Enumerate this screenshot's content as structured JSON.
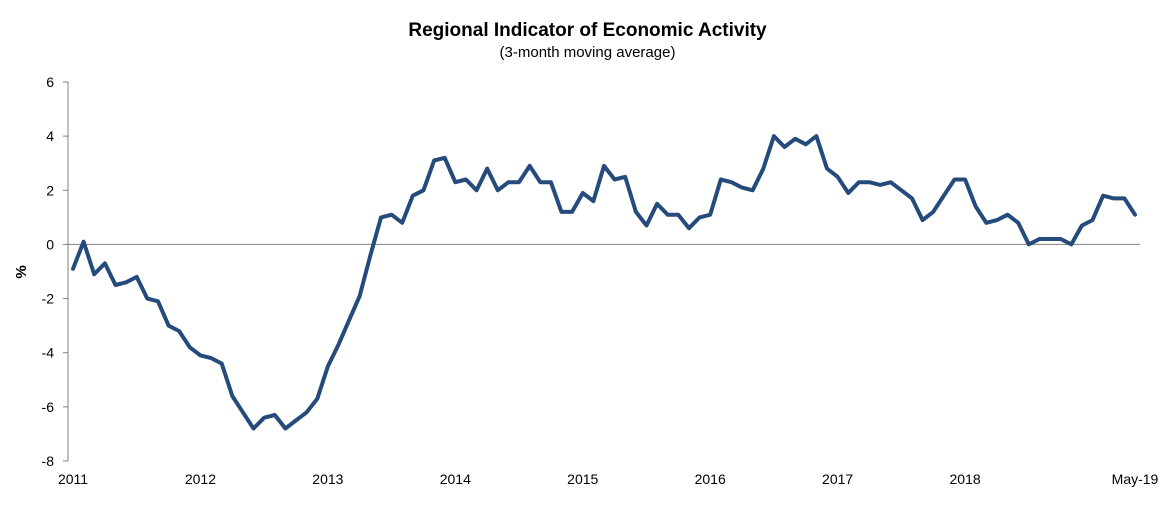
{
  "chart_data": {
    "type": "line",
    "title": "Regional Indicator of Economic Activity",
    "subtitle": "(3-month moving average)",
    "xlabel": "",
    "ylabel": "%",
    "ylim": [
      -8,
      6
    ],
    "yticks": [
      6,
      4,
      2,
      0,
      -2,
      -4,
      -6,
      -8
    ],
    "xticks": [
      "2011",
      "2012",
      "2013",
      "2014",
      "2015",
      "2016",
      "2017",
      "2018",
      "May-19"
    ],
    "xtick_months": [
      0,
      12,
      24,
      36,
      48,
      60,
      72,
      84,
      100
    ],
    "grid": false,
    "legend": "none",
    "line_color": "#254a7c",
    "x_start": "2011-01",
    "x_end": "2019-05",
    "series": [
      {
        "values": [
          -0.9,
          0.1,
          -1.1,
          -0.7,
          -1.5,
          -1.4,
          -1.2,
          -2.0,
          -2.1,
          -3.0,
          -3.2,
          -3.8,
          -4.1,
          -4.2,
          -4.4,
          -5.6,
          -6.2,
          -6.8,
          -6.4,
          -6.3,
          -6.8,
          -6.5,
          -6.2,
          -5.7,
          -4.5,
          -3.7,
          -2.8,
          -1.9,
          -0.4,
          1.0,
          1.1,
          0.8,
          1.8,
          2.0,
          3.1,
          3.2,
          2.3,
          2.4,
          2.0,
          2.8,
          2.0,
          2.3,
          2.3,
          2.9,
          2.3,
          2.3,
          1.2,
          1.2,
          1.9,
          1.6,
          2.9,
          2.4,
          2.5,
          1.2,
          0.7,
          1.5,
          1.1,
          1.1,
          0.6,
          1.0,
          1.1,
          2.4,
          2.3,
          2.1,
          2.0,
          2.8,
          4.0,
          3.6,
          3.9,
          3.7,
          4.0,
          2.8,
          2.5,
          1.9,
          2.3,
          2.3,
          2.2,
          2.3,
          2.0,
          1.7,
          0.9,
          1.2,
          1.8,
          2.4,
          2.4,
          1.4,
          0.8,
          0.9,
          1.1,
          0.8,
          0.0,
          0.2,
          0.2,
          0.2,
          0.0,
          0.7,
          0.9,
          1.8,
          1.7,
          1.7,
          1.1
        ]
      }
    ]
  }
}
